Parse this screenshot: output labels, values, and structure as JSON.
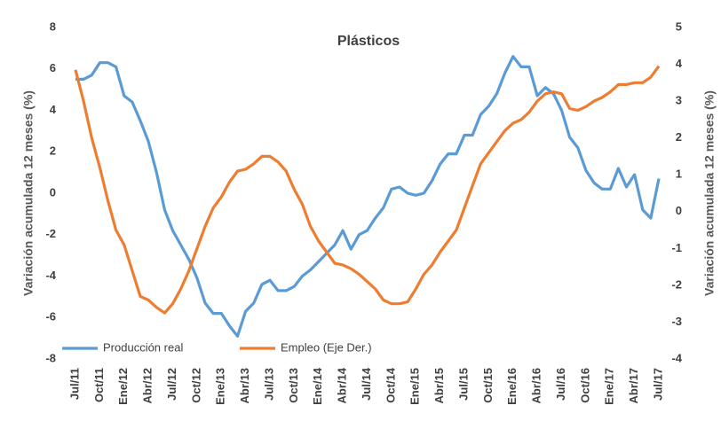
{
  "chart_data": {
    "type": "line",
    "title": "Plásticos",
    "y_label": "Variación acumulada 12 meses (%)",
    "y2_label": "Variación acumulada 12 meses (%)",
    "categories": [
      "Jul/11",
      null,
      null,
      "Oct/11",
      null,
      null,
      "Ene/12",
      null,
      null,
      "Abr/12",
      null,
      null,
      "Jul/12",
      null,
      null,
      "Oct/12",
      null,
      null,
      "Ene/13",
      null,
      null,
      "Abr/13",
      null,
      null,
      "Jul/13",
      null,
      null,
      "Oct/13",
      null,
      null,
      "Ene/14",
      null,
      null,
      "Abr/14",
      null,
      null,
      "Jul/14",
      null,
      null,
      "Oct/14",
      null,
      null,
      "Ene/15",
      null,
      null,
      "Abr/15",
      null,
      null,
      "Jul/15",
      null,
      null,
      "Oct/15",
      null,
      null,
      "Ene/16",
      null,
      null,
      "Abr/16",
      null,
      null,
      "Jul/16",
      null,
      null,
      "Oct/16",
      null,
      null,
      "Ene/17",
      null,
      null,
      "Abr/17",
      null,
      null,
      "Jul/17"
    ],
    "series": [
      {
        "name": "Producción real",
        "color": "#5b9bd5",
        "values": [
          5.5,
          5.5,
          5.7,
          6.3,
          6.3,
          6.1,
          4.7,
          4.4,
          3.5,
          2.5,
          1.0,
          -0.8,
          -1.8,
          -2.5,
          -3.2,
          -4.1,
          -5.3,
          -5.8,
          -5.8,
          -6.4,
          -6.9,
          -5.7,
          -5.3,
          -4.4,
          -4.2,
          -4.7,
          -4.7,
          -4.5,
          -4.0,
          -3.7,
          -3.3,
          -2.9,
          -2.5,
          -1.8,
          -2.7,
          -2.0,
          -1.8,
          -1.2,
          -0.7,
          0.2,
          0.3,
          0.0,
          -0.1,
          0.0,
          0.6,
          1.4,
          1.9,
          1.9,
          2.8,
          2.8,
          3.8,
          4.2,
          4.8,
          5.8,
          6.6,
          6.1,
          6.1,
          4.7,
          5.1,
          4.8,
          4.0,
          2.7,
          2.2,
          1.1,
          0.5,
          0.2,
          0.2,
          1.2,
          0.3,
          0.9,
          -0.8,
          -1.2,
          0.7
        ]
      },
      {
        "name": "Empleo (Eje Der.)",
        "color": "#ed7d31",
        "axis": "y2",
        "values": [
          3.85,
          3.0,
          2.0,
          1.2,
          0.3,
          -0.5,
          -0.9,
          -1.6,
          -2.3,
          -2.4,
          -2.6,
          -2.75,
          -2.5,
          -2.1,
          -1.6,
          -1.0,
          -0.4,
          0.1,
          0.4,
          0.8,
          1.1,
          1.15,
          1.3,
          1.5,
          1.5,
          1.35,
          1.1,
          0.6,
          0.2,
          -0.4,
          -0.8,
          -1.1,
          -1.4,
          -1.45,
          -1.55,
          -1.7,
          -1.9,
          -2.1,
          -2.4,
          -2.5,
          -2.5,
          -2.45,
          -2.1,
          -1.7,
          -1.45,
          -1.1,
          -0.8,
          -0.5,
          0.1,
          0.7,
          1.3,
          1.6,
          1.9,
          2.2,
          2.4,
          2.5,
          2.7,
          3.0,
          3.2,
          3.25,
          3.2,
          2.8,
          2.75,
          2.85,
          3.0,
          3.1,
          3.25,
          3.45,
          3.45,
          3.5,
          3.5,
          3.65,
          3.95
        ]
      }
    ],
    "ylim": [
      -8,
      8
    ],
    "yticks": [
      -8,
      -6,
      -4,
      -2,
      0,
      2,
      4,
      6,
      8
    ],
    "y2lim": [
      -4,
      5
    ],
    "y2ticks": [
      -4,
      -3,
      -2,
      -1,
      0,
      1,
      2,
      3,
      4,
      5
    ],
    "legend": "bottom-left",
    "grid": false
  }
}
